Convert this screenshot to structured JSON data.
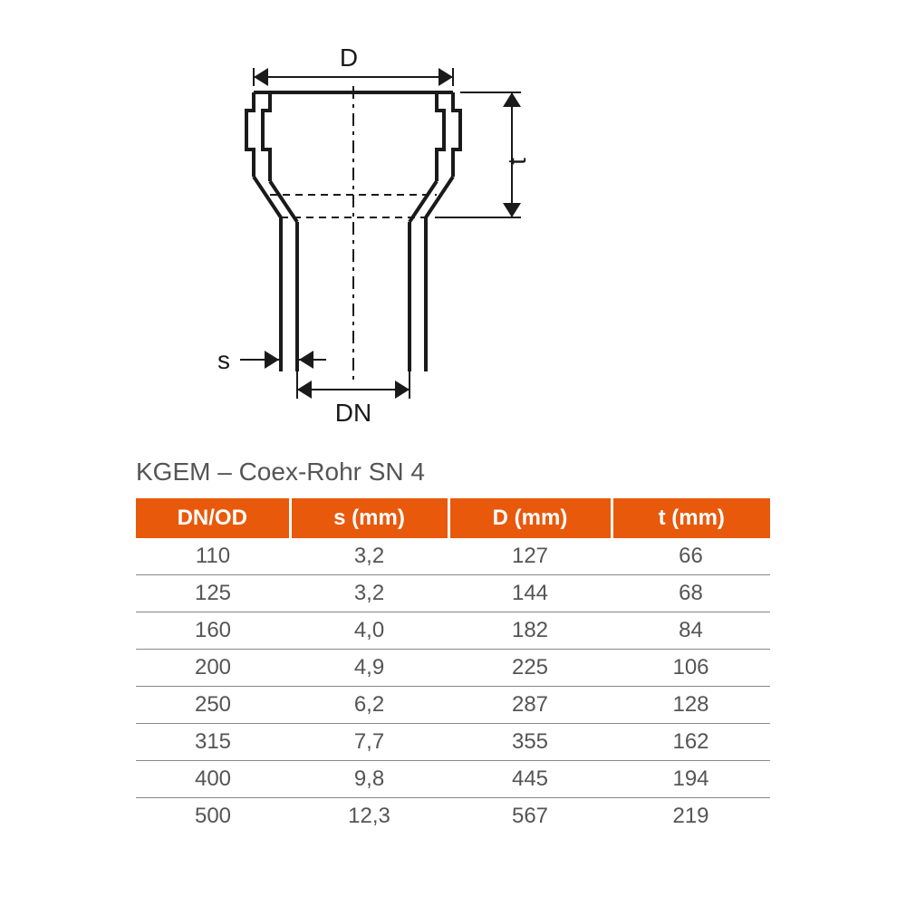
{
  "diagram": {
    "labels": {
      "D": "D",
      "t": "t",
      "s": "s",
      "DN": "DN"
    },
    "stroke_color": "#1a1a1a",
    "stroke_width": 4,
    "thin_stroke": 2,
    "label_fontsize": 28
  },
  "table": {
    "title": "KGEM – Coex-Rohr SN 4",
    "header_bg": "#e8590c",
    "header_fg": "#ffffff",
    "text_color": "#555555",
    "border_color": "#888888",
    "columns": [
      "DN/OD",
      "s (mm)",
      "D (mm)",
      "t (mm)"
    ],
    "rows": [
      [
        "110",
        "3,2",
        "127",
        "66"
      ],
      [
        "125",
        "3,2",
        "144",
        "68"
      ],
      [
        "160",
        "4,0",
        "182",
        "84"
      ],
      [
        "200",
        "4,9",
        "225",
        "106"
      ],
      [
        "250",
        "6,2",
        "287",
        "128"
      ],
      [
        "315",
        "7,7",
        "355",
        "162"
      ],
      [
        "400",
        "9,8",
        "445",
        "194"
      ],
      [
        "500",
        "12,3",
        "567",
        "219"
      ]
    ]
  }
}
